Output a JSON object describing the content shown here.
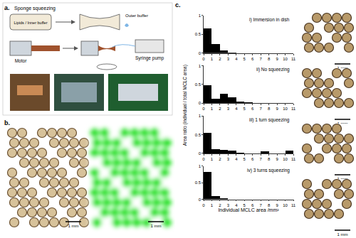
{
  "chart_data": [
    {
      "type": "histogram",
      "title": "i) Immersion in dish",
      "bins": [
        0,
        1,
        2,
        3,
        4,
        5,
        6,
        7,
        8,
        9,
        10,
        11
      ],
      "counts": [
        0.65,
        0.25,
        0.07,
        0.02,
        0,
        0,
        0,
        0,
        0,
        0,
        0
      ],
      "color": "#000000",
      "xlim": [
        0,
        11
      ],
      "xticks": [
        0,
        1,
        2,
        3,
        4,
        5,
        6,
        7,
        8,
        9,
        10,
        11
      ],
      "ylim": [
        0,
        1
      ],
      "yticks": [
        0,
        0.5,
        1
      ],
      "grid": false
    },
    {
      "type": "histogram",
      "title": "ii) No squeezing",
      "bins": [
        0,
        1,
        2,
        3,
        4,
        5,
        6,
        7,
        8,
        9,
        10,
        11
      ],
      "counts": [
        0.47,
        0.12,
        0.25,
        0.15,
        0.05,
        0.03,
        0,
        0,
        0,
        0,
        0
      ],
      "color": "#000000",
      "xlim": [
        0,
        11
      ],
      "xticks": [
        0,
        1,
        2,
        3,
        4,
        5,
        6,
        7,
        8,
        9,
        10,
        11
      ],
      "ylim": [
        0,
        1
      ],
      "yticks": [
        0,
        0.5,
        1
      ],
      "grid": false
    },
    {
      "type": "histogram",
      "title": "iii) 1 turn squeezing",
      "bins": [
        0,
        1,
        2,
        3,
        4,
        5,
        6,
        7,
        8,
        9,
        10,
        11
      ],
      "counts": [
        0.55,
        0.12,
        0.1,
        0.08,
        0.02,
        0,
        0,
        0.06,
        0,
        0,
        0.07
      ],
      "color": "#000000",
      "xlim": [
        0,
        11
      ],
      "xticks": [
        0,
        1,
        2,
        3,
        4,
        5,
        6,
        7,
        8,
        9,
        10,
        11
      ],
      "ylim": [
        0,
        1
      ],
      "yticks": [
        0,
        0.5,
        1
      ],
      "grid": false
    },
    {
      "type": "histogram",
      "title": "iv) 3 turns squeezing",
      "bins": [
        0,
        1,
        2,
        3,
        4,
        5,
        6,
        7,
        8,
        9,
        10,
        11
      ],
      "counts": [
        0.82,
        0.1,
        0.03,
        0,
        0,
        0,
        0,
        0,
        0,
        0,
        0
      ],
      "color": "#000000",
      "xlim": [
        0,
        11
      ],
      "xticks": [
        0,
        1,
        2,
        3,
        4,
        5,
        6,
        7,
        8,
        9,
        10,
        11
      ],
      "ylim": [
        0,
        1
      ],
      "yticks": [
        0,
        0.5,
        1
      ],
      "grid": false,
      "x_label": "Individual MCLC area /mm²"
    }
  ],
  "figure": {
    "a": {
      "label": "a.",
      "title": "Sponge squeezing",
      "inner": "Lipids / Inner buffer",
      "outer": "Outer buffer",
      "motor": "Motor",
      "pump": "Syringe pump"
    },
    "b": {
      "label": "b.",
      "scale_bars": [
        "1 mm",
        "1 mm"
      ]
    },
    "c": {
      "label": "c.",
      "y_label": "Area ratio (individual / total MCLC area)",
      "scale_bars": [
        "1 mm",
        "1 mm",
        "1 mm",
        "1 mm"
      ]
    }
  }
}
